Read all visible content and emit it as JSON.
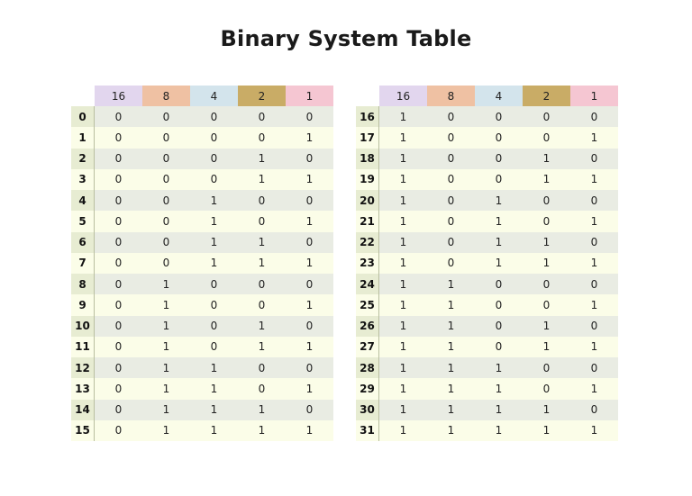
{
  "title": "Binary System Table",
  "colors": {
    "header_16": "#e2d6ee",
    "header_8": "#efc1a3",
    "header_4": "#d3e4ec",
    "header_2": "#c9ac66",
    "header_1": "#f5c6d2",
    "row_even": "#e9ece3",
    "row_odd": "#fbfde8"
  },
  "headers": [
    "16",
    "8",
    "4",
    "2",
    "1"
  ],
  "left_table": {
    "rows": [
      {
        "n": "0",
        "bits": [
          "0",
          "0",
          "0",
          "0",
          "0"
        ]
      },
      {
        "n": "1",
        "bits": [
          "0",
          "0",
          "0",
          "0",
          "1"
        ]
      },
      {
        "n": "2",
        "bits": [
          "0",
          "0",
          "0",
          "1",
          "0"
        ]
      },
      {
        "n": "3",
        "bits": [
          "0",
          "0",
          "0",
          "1",
          "1"
        ]
      },
      {
        "n": "4",
        "bits": [
          "0",
          "0",
          "1",
          "0",
          "0"
        ]
      },
      {
        "n": "5",
        "bits": [
          "0",
          "0",
          "1",
          "0",
          "1"
        ]
      },
      {
        "n": "6",
        "bits": [
          "0",
          "0",
          "1",
          "1",
          "0"
        ]
      },
      {
        "n": "7",
        "bits": [
          "0",
          "0",
          "1",
          "1",
          "1"
        ]
      },
      {
        "n": "8",
        "bits": [
          "0",
          "1",
          "0",
          "0",
          "0"
        ]
      },
      {
        "n": "9",
        "bits": [
          "0",
          "1",
          "0",
          "0",
          "1"
        ]
      },
      {
        "n": "10",
        "bits": [
          "0",
          "1",
          "0",
          "1",
          "0"
        ]
      },
      {
        "n": "11",
        "bits": [
          "0",
          "1",
          "0",
          "1",
          "1"
        ]
      },
      {
        "n": "12",
        "bits": [
          "0",
          "1",
          "1",
          "0",
          "0"
        ]
      },
      {
        "n": "13",
        "bits": [
          "0",
          "1",
          "1",
          "0",
          "1"
        ]
      },
      {
        "n": "14",
        "bits": [
          "0",
          "1",
          "1",
          "1",
          "0"
        ]
      },
      {
        "n": "15",
        "bits": [
          "0",
          "1",
          "1",
          "1",
          "1"
        ]
      }
    ]
  },
  "right_table": {
    "rows": [
      {
        "n": "16",
        "bits": [
          "1",
          "0",
          "0",
          "0",
          "0"
        ]
      },
      {
        "n": "17",
        "bits": [
          "1",
          "0",
          "0",
          "0",
          "1"
        ]
      },
      {
        "n": "18",
        "bits": [
          "1",
          "0",
          "0",
          "1",
          "0"
        ]
      },
      {
        "n": "19",
        "bits": [
          "1",
          "0",
          "0",
          "1",
          "1"
        ]
      },
      {
        "n": "20",
        "bits": [
          "1",
          "0",
          "1",
          "0",
          "0"
        ]
      },
      {
        "n": "21",
        "bits": [
          "1",
          "0",
          "1",
          "0",
          "1"
        ]
      },
      {
        "n": "22",
        "bits": [
          "1",
          "0",
          "1",
          "1",
          "0"
        ]
      },
      {
        "n": "23",
        "bits": [
          "1",
          "0",
          "1",
          "1",
          "1"
        ]
      },
      {
        "n": "24",
        "bits": [
          "1",
          "1",
          "0",
          "0",
          "0"
        ]
      },
      {
        "n": "25",
        "bits": [
          "1",
          "1",
          "0",
          "0",
          "1"
        ]
      },
      {
        "n": "26",
        "bits": [
          "1",
          "1",
          "0",
          "1",
          "0"
        ]
      },
      {
        "n": "27",
        "bits": [
          "1",
          "1",
          "0",
          "1",
          "1"
        ]
      },
      {
        "n": "28",
        "bits": [
          "1",
          "1",
          "1",
          "0",
          "0"
        ]
      },
      {
        "n": "29",
        "bits": [
          "1",
          "1",
          "1",
          "0",
          "1"
        ]
      },
      {
        "n": "30",
        "bits": [
          "1",
          "1",
          "1",
          "1",
          "0"
        ]
      },
      {
        "n": "31",
        "bits": [
          "1",
          "1",
          "1",
          "1",
          "1"
        ]
      }
    ]
  }
}
